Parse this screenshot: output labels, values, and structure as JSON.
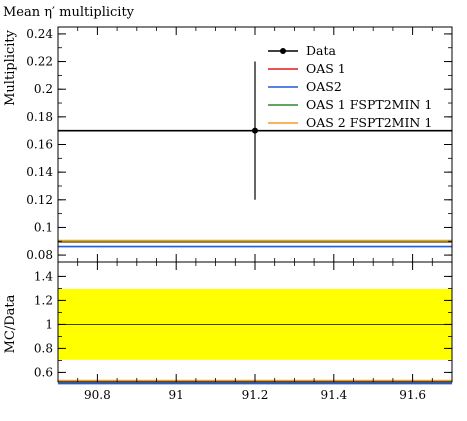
{
  "chart_data": [
    {
      "type": "line",
      "title": "Mean η′ multiplicity",
      "ylabel": "Multiplicity",
      "xlim": [
        90.7,
        91.7
      ],
      "ylim": [
        0.075,
        0.245
      ],
      "yticks": [
        0.08,
        0.1,
        0.12,
        0.14,
        0.16,
        0.18,
        0.2,
        0.22,
        0.24
      ],
      "ytick_labels": [
        "0.08",
        "0.1",
        "0.12",
        "0.14",
        "0.16",
        "0.18",
        "0.2",
        "0.22",
        "0.24"
      ],
      "legend_position": "top-right",
      "data_point": {
        "name": "Data",
        "x": 91.2,
        "y": 0.17,
        "y_err_low": 0.12,
        "y_err_high": 0.22,
        "x_range": [
          90.7,
          91.7
        ],
        "color": "#000000"
      },
      "series": [
        {
          "name": "OAS 1",
          "color": "#e41a1c",
          "x": [
            90.7,
            91.7
          ],
          "y": [
            0.0895,
            0.0895
          ]
        },
        {
          "name": "OAS2",
          "color": "#1f5bd6",
          "x": [
            90.7,
            91.7
          ],
          "y": [
            0.0862,
            0.0862
          ]
        },
        {
          "name": "OAS 1 FSPT2MIN 1",
          "color": "#2a8a2a",
          "x": [
            90.7,
            91.7
          ],
          "y": [
            0.0898,
            0.0898
          ]
        },
        {
          "name": "OAS 2 FSPT2MIN 1",
          "color": "#f39c27",
          "x": [
            90.7,
            91.7
          ],
          "y": [
            0.0905,
            0.0905
          ]
        }
      ]
    },
    {
      "type": "line",
      "ylabel": "MC/Data",
      "xlim": [
        90.7,
        91.7
      ],
      "ylim": [
        0.52,
        1.52
      ],
      "yticks": [
        0.6,
        0.8,
        1.0,
        1.2,
        1.4
      ],
      "ytick_labels": [
        "0.6",
        "0.8",
        "1",
        "1.2",
        "1.4"
      ],
      "xticks": [
        90.8,
        91.0,
        91.2,
        91.4,
        91.6
      ],
      "xtick_labels": [
        "90.8",
        "91",
        "91.2",
        "91.4",
        "91.6"
      ],
      "band": {
        "y_low": 0.705,
        "y_high": 1.295,
        "color": "#ffff00"
      },
      "reference_line": 1.0,
      "series": [
        {
          "name": "OAS 1",
          "color": "#e41a1c",
          "x": [
            90.7,
            91.7
          ],
          "y": [
            0.527,
            0.527
          ]
        },
        {
          "name": "OAS2",
          "color": "#1f5bd6",
          "x": [
            90.7,
            91.7
          ],
          "y": [
            0.507,
            0.507
          ]
        },
        {
          "name": "OAS 1 FSPT2MIN 1",
          "color": "#2a8a2a",
          "x": [
            90.7,
            91.7
          ],
          "y": [
            0.528,
            0.528
          ]
        },
        {
          "name": "OAS 2 FSPT2MIN 1",
          "color": "#f39c27",
          "x": [
            90.7,
            91.7
          ],
          "y": [
            0.532,
            0.532
          ]
        }
      ]
    }
  ]
}
